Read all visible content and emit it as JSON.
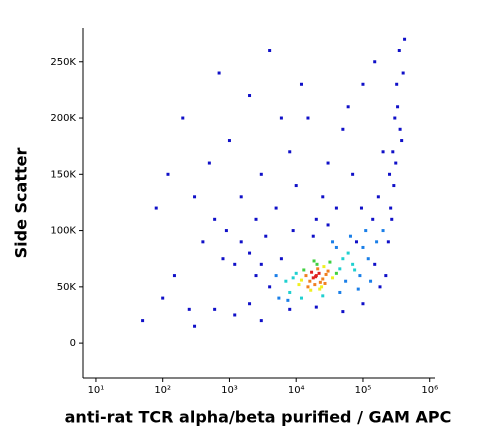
{
  "chart_data": {
    "type": "scatter",
    "x_label": "anti-rat TCR alpha/beta purified / GAM APC",
    "y_label": "Side Scatter",
    "xscale": "log",
    "xlim": [
      6.4,
      1200000
    ],
    "ylim": [
      -31000,
      280000
    ],
    "xticks": [
      {
        "value": 10,
        "label": "10¹"
      },
      {
        "value": 100,
        "label": "10²"
      },
      {
        "value": 1000,
        "label": "10³"
      },
      {
        "value": 10000,
        "label": "10⁴"
      },
      {
        "value": 100000,
        "label": "10⁵"
      },
      {
        "value": 1000000,
        "label": "10⁶"
      }
    ],
    "yticks": [
      0,
      {
        "value": 50000,
        "label": "50K"
      },
      {
        "value": 100000,
        "label": "100K"
      },
      {
        "value": 150000,
        "label": "150K"
      },
      {
        "value": 200000,
        "label": "200K"
      },
      {
        "value": 250000,
        "label": "250K"
      }
    ],
    "colormap": [
      "#1010c8",
      "#1a7fe8",
      "#20d0d0",
      "#40d040",
      "#f0f020",
      "#f08020",
      "#e02020"
    ],
    "x": [
      18000,
      20000,
      16000,
      22000,
      19000,
      25000,
      14000,
      21000,
      17000,
      23000,
      15000,
      28000,
      12000,
      26000,
      19500,
      24000,
      30000,
      13000,
      11000,
      35000,
      20500,
      27000,
      9000,
      32000,
      40000,
      16500,
      22500,
      18500,
      45000,
      10000,
      3000,
      5000,
      7000,
      2000,
      1500,
      4000,
      6000,
      8000,
      50000,
      60000,
      70000,
      80000,
      90000,
      100000,
      120000,
      55000,
      65000,
      75000,
      110000,
      130000,
      150000,
      40000,
      35000,
      3500,
      2500,
      1200,
      900,
      800,
      600,
      5500,
      7500,
      12000,
      25000,
      45000,
      85000,
      160000,
      140000,
      95000,
      170000,
      200000,
      220000,
      180000,
      250000,
      280000,
      300000,
      320000,
      350000,
      260000,
      380000,
      400000,
      290000,
      330000,
      360000,
      420000,
      270000,
      310000,
      240000,
      300,
      500,
      200,
      1000,
      2000,
      3000,
      5000,
      8000,
      10000,
      15000,
      20000,
      30000,
      50000,
      70000,
      100000,
      150000,
      400,
      150,
      100,
      80,
      700,
      1500,
      4000,
      6000,
      12000,
      25000,
      40000,
      60000,
      200000,
      250,
      50,
      120,
      2500,
      9000,
      18000,
      30000,
      600,
      1200,
      3000,
      8000,
      20000,
      50000,
      100000,
      300,
      2000
    ],
    "y": [
      58000,
      60000,
      55000,
      62000,
      52000,
      57000,
      60000,
      66000,
      63000,
      54000,
      50000,
      61000,
      56000,
      68000,
      59000,
      50000,
      64000,
      65000,
      52000,
      58000,
      70000,
      53000,
      58000,
      72000,
      62000,
      47000,
      48000,
      73000,
      66000,
      62000,
      70000,
      60000,
      55000,
      80000,
      90000,
      50000,
      75000,
      45000,
      75000,
      80000,
      70000,
      90000,
      60000,
      85000,
      75000,
      55000,
      95000,
      65000,
      100000,
      55000,
      70000,
      85000,
      90000,
      95000,
      60000,
      70000,
      100000,
      75000,
      110000,
      40000,
      38000,
      40000,
      42000,
      45000,
      48000,
      90000,
      110000,
      120000,
      130000,
      100000,
      60000,
      50000,
      150000,
      170000,
      200000,
      230000,
      260000,
      120000,
      180000,
      240000,
      140000,
      210000,
      190000,
      270000,
      110000,
      160000,
      90000,
      130000,
      160000,
      200000,
      180000,
      220000,
      150000,
      120000,
      170000,
      140000,
      200000,
      110000,
      160000,
      190000,
      150000,
      230000,
      250000,
      90000,
      60000,
      40000,
      120000,
      240000,
      130000,
      260000,
      200000,
      230000,
      130000,
      120000,
      210000,
      170000,
      30000,
      20000,
      150000,
      110000,
      100000,
      95000,
      105000,
      30000,
      25000,
      20000,
      30000,
      32000,
      28000,
      35000,
      15000,
      35000
    ]
  }
}
